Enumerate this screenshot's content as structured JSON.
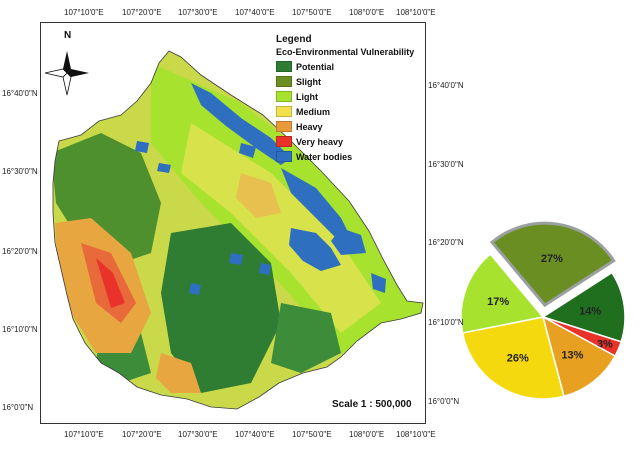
{
  "x_ticks": [
    "107°10'0\"E",
    "107°20'0\"E",
    "107°30'0\"E",
    "107°40'0\"E",
    "107°50'0\"E",
    "108°0'0\"E",
    "108°10'0\"E"
  ],
  "y_ticks_left": [
    "16°40'0\"N",
    "16°30'0\"N",
    "16°20'0\"N",
    "16°10'0\"N",
    "16°0'0\"N"
  ],
  "y_ticks_right": [
    "16°40'0\"N",
    "16°30'0\"N",
    "16°20'0\"N",
    "16°10'0\"N",
    "16°0'0\"N"
  ],
  "north_label": "N",
  "legend": {
    "title": "Legend",
    "subtitle": "Eco-Environmental Vulnerability",
    "items": [
      {
        "label": "Potential",
        "color": "#2e7d32"
      },
      {
        "label": "Slight",
        "color": "#6b8e23"
      },
      {
        "label": "Light",
        "color": "#a6e22e"
      },
      {
        "label": "Medium",
        "color": "#f2e14c"
      },
      {
        "label": "Heavy",
        "color": "#e89a3a"
      },
      {
        "label": "Very heavy",
        "color": "#e8322a"
      },
      {
        "label": "Water bodies",
        "color": "#2f6fc0"
      }
    ]
  },
  "scale": "Scale 1 : 500,000",
  "chart_data": {
    "type": "pie",
    "slices": [
      {
        "label": "27%",
        "value": 27,
        "color": "#6b8e23",
        "exploded": true
      },
      {
        "label": "14%",
        "value": 14,
        "color": "#1f6f1f"
      },
      {
        "label": "3%",
        "value": 3,
        "color": "#e8322a"
      },
      {
        "label": "13%",
        "value": 13,
        "color": "#e8a020"
      },
      {
        "label": "26%",
        "value": 26,
        "color": "#f5d90f"
      },
      {
        "label": "17%",
        "value": 17,
        "color": "#a6e22e"
      }
    ]
  }
}
